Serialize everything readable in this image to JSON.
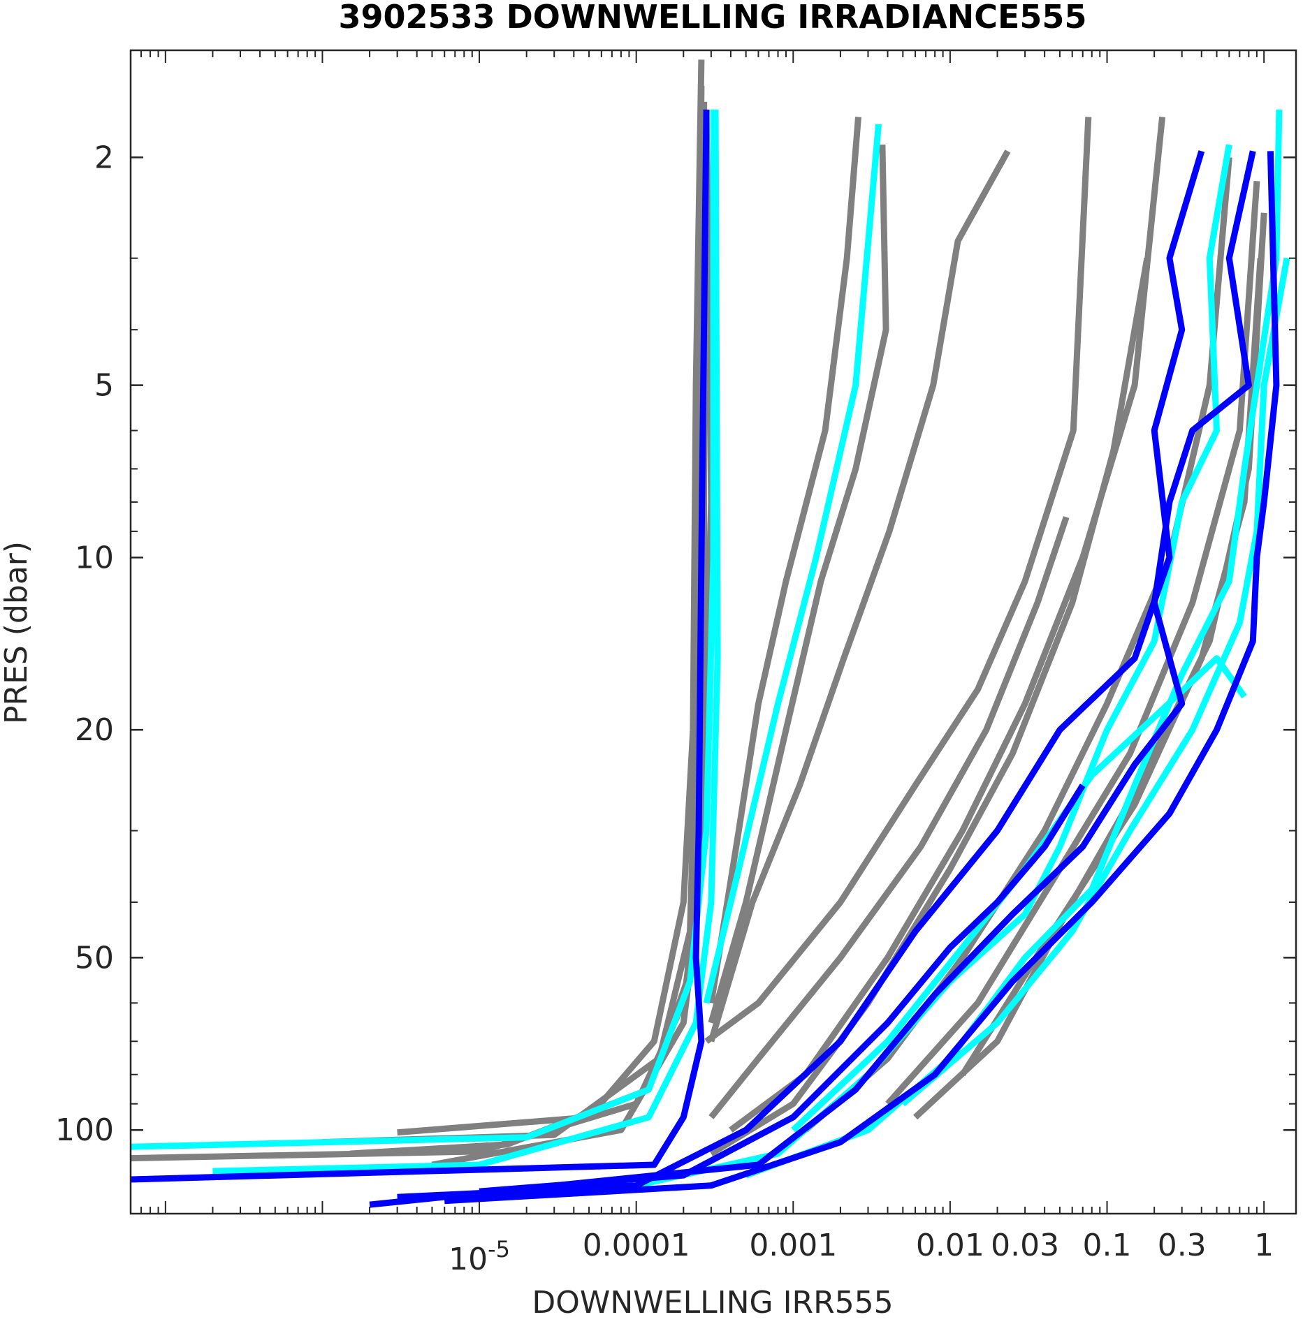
{
  "chart_data": {
    "type": "line",
    "title": "3902533  DOWNWELLING IRRADIANCE555",
    "xlabel": "DOWNWELLING IRR555",
    "ylabel": "PRES (dbar)",
    "xscale": "log",
    "yscale": "log",
    "yaxis_reversed": true,
    "xlim": [
      6e-08,
      1.6
    ],
    "ylim": [
      1.3,
      140
    ],
    "grid": false,
    "legend": "none",
    "x_ticks": [
      {
        "value": 1e-05,
        "label": "10",
        "sup": "-5"
      },
      {
        "value": 0.0001,
        "label": "0.0001",
        "sup": ""
      },
      {
        "value": 0.001,
        "label": "0.001",
        "sup": ""
      },
      {
        "value": 0.01,
        "label": "0.01",
        "sup": ""
      },
      {
        "value": 0.03,
        "label": "0.03",
        "sup": ""
      },
      {
        "value": 0.1,
        "label": "0.1",
        "sup": ""
      },
      {
        "value": 0.3,
        "label": "0.3",
        "sup": ""
      },
      {
        "value": 1,
        "label": "1",
        "sup": ""
      }
    ],
    "y_ticks": [
      {
        "value": 2,
        "label": "2"
      },
      {
        "value": 5,
        "label": "5"
      },
      {
        "value": 10,
        "label": "10"
      },
      {
        "value": 20,
        "label": "20"
      },
      {
        "value": 50,
        "label": "50"
      },
      {
        "value": 100,
        "label": "100"
      }
    ],
    "colors": {
      "gray": "#808080",
      "cyan": "#00ffff",
      "blue": "#0000ff",
      "red": "#ff0000",
      "axis": "#262626"
    },
    "series": [
      {
        "color": "gray",
        "points": [
          [
            0.00026,
            1.35
          ],
          [
            0.00024,
            5
          ],
          [
            0.00023,
            20
          ],
          [
            0.0002,
            40
          ],
          [
            0.00013,
            70
          ],
          [
            5e-05,
            95
          ],
          [
            3e-06,
            101
          ]
        ]
      },
      {
        "color": "gray",
        "points": [
          [
            0.00026,
            1.5
          ],
          [
            0.00025,
            5
          ],
          [
            0.00024,
            20
          ],
          [
            0.00022,
            45
          ],
          [
            0.00014,
            75
          ],
          [
            3e-05,
            102
          ],
          [
            1e-06,
            105
          ]
        ]
      },
      {
        "color": "gray",
        "points": [
          [
            0.00027,
            1.6
          ],
          [
            0.00027,
            10
          ],
          [
            0.00025,
            30
          ],
          [
            0.00021,
            55
          ],
          [
            0.00012,
            85
          ],
          [
            1.5e-05,
            106
          ],
          [
            1.5e-06,
            110
          ]
        ]
      },
      {
        "color": "gray",
        "points": [
          [
            0.00028,
            1.7
          ],
          [
            0.0003,
            8
          ],
          [
            0.00026,
            35
          ],
          [
            0.0002,
            60
          ],
          [
            0.0001,
            90
          ],
          [
            1e-05,
            109
          ],
          [
            6e-08,
            112
          ]
        ]
      },
      {
        "color": "gray",
        "points": [
          [
            0.00027,
            1.6
          ],
          [
            0.00026,
            15
          ],
          [
            0.00025,
            40
          ],
          [
            0.0002,
            65
          ],
          [
            8e-05,
            100
          ],
          [
            5e-06,
            115
          ]
        ]
      },
      {
        "color": "gray",
        "points": [
          [
            0.0026,
            1.7
          ],
          [
            0.0022,
            3
          ],
          [
            0.0016,
            6
          ],
          [
            0.0009,
            11
          ],
          [
            0.0006,
            18
          ],
          [
            0.00045,
            30
          ],
          [
            0.0003,
            60
          ]
        ]
      },
      {
        "color": "gray",
        "points": [
          [
            0.0037,
            1.9
          ],
          [
            0.0039,
            4
          ],
          [
            0.0025,
            7
          ],
          [
            0.0015,
            11
          ],
          [
            0.0009,
            20
          ],
          [
            0.0005,
            40
          ],
          [
            0.0003,
            65
          ]
        ]
      },
      {
        "color": "gray",
        "points": [
          [
            0.0233,
            1.95
          ],
          [
            0.0112,
            2.8
          ],
          [
            0.0078,
            5
          ],
          [
            0.0041,
            9
          ],
          [
            0.0021,
            15
          ],
          [
            0.0011,
            25
          ],
          [
            0.00055,
            40
          ],
          [
            0.0003,
            70
          ]
        ]
      },
      {
        "color": "gray",
        "points": [
          [
            0.076,
            1.7
          ],
          [
            0.061,
            6
          ],
          [
            0.03,
            11
          ],
          [
            0.015,
            17
          ],
          [
            0.006,
            25
          ],
          [
            0.002,
            40
          ],
          [
            0.0006,
            60
          ],
          [
            0.00028,
            70
          ]
        ]
      },
      {
        "color": "gray",
        "points": [
          [
            0.055,
            8.5
          ],
          [
            0.036,
            12
          ],
          [
            0.017,
            20
          ],
          [
            0.0065,
            32
          ],
          [
            0.002,
            50
          ],
          [
            0.0006,
            75
          ],
          [
            0.0003,
            95
          ]
        ]
      },
      {
        "color": "gray",
        "points": [
          [
            0.225,
            1.7
          ],
          [
            0.15,
            5
          ],
          [
            0.07,
            10
          ],
          [
            0.03,
            18
          ],
          [
            0.012,
            30
          ],
          [
            0.004,
            50
          ],
          [
            0.0012,
            80
          ],
          [
            0.0004,
            100
          ]
        ]
      },
      {
        "color": "gray",
        "points": [
          [
            0.18,
            3
          ],
          [
            0.11,
            6.5
          ],
          [
            0.06,
            12
          ],
          [
            0.025,
            22
          ],
          [
            0.01,
            35
          ],
          [
            0.003,
            60
          ],
          [
            0.001,
            90
          ],
          [
            0.0003,
            110
          ]
        ]
      },
      {
        "color": "gray",
        "points": [
          [
            0.6,
            2
          ],
          [
            0.45,
            5
          ],
          [
            0.25,
            10
          ],
          [
            0.1,
            18
          ],
          [
            0.04,
            30
          ],
          [
            0.012,
            50
          ],
          [
            0.004,
            75
          ],
          [
            0.0012,
            100
          ]
        ]
      },
      {
        "color": "gray",
        "points": [
          [
            0.9,
            2.2
          ],
          [
            0.7,
            6
          ],
          [
            0.35,
            12
          ],
          [
            0.14,
            22
          ],
          [
            0.05,
            35
          ],
          [
            0.015,
            60
          ],
          [
            0.004,
            90
          ]
        ]
      },
      {
        "color": "gray",
        "points": [
          [
            1.0,
            2.5
          ],
          [
            0.8,
            7
          ],
          [
            0.45,
            14
          ],
          [
            0.16,
            25
          ],
          [
            0.06,
            40
          ],
          [
            0.02,
            70
          ],
          [
            0.006,
            95
          ]
        ]
      },
      {
        "color": "gray",
        "points": [
          [
            0.95,
            3
          ],
          [
            0.75,
            8
          ],
          [
            0.4,
            15
          ],
          [
            0.15,
            27
          ],
          [
            0.045,
            45
          ],
          [
            0.012,
            80
          ]
        ]
      },
      {
        "color": "cyan",
        "points": [
          [
            0.00031,
            1.65
          ],
          [
            0.00031,
            10
          ],
          [
            0.00028,
            30
          ],
          [
            0.00022,
            55
          ],
          [
            0.00012,
            85
          ],
          [
            2e-05,
            103
          ],
          [
            6e-08,
            107
          ]
        ]
      },
      {
        "color": "cyan",
        "points": [
          [
            0.00032,
            1.65
          ],
          [
            0.00033,
            15
          ],
          [
            0.0003,
            40
          ],
          [
            0.00024,
            65
          ],
          [
            0.00012,
            95
          ],
          [
            1e-05,
            115
          ],
          [
            2e-07,
            118
          ]
        ]
      },
      {
        "color": "cyan",
        "points": [
          [
            0.0035,
            1.75
          ],
          [
            0.0025,
            5
          ],
          [
            0.0014,
            10
          ],
          [
            0.0008,
            18
          ],
          [
            0.00045,
            35
          ],
          [
            0.00028,
            60
          ]
        ]
      },
      {
        "color": "cyan",
        "points": [
          [
            0.6,
            1.9
          ],
          [
            0.45,
            3
          ],
          [
            0.5,
            6
          ],
          [
            0.3,
            8
          ],
          [
            0.2,
            14
          ],
          [
            0.1,
            20
          ],
          [
            0.05,
            32
          ],
          [
            0.03,
            42
          ],
          [
            0.01,
            55
          ],
          [
            0.003,
            80
          ],
          [
            0.0008,
            110
          ],
          [
            0.0001,
            125
          ]
        ]
      },
      {
        "color": "cyan",
        "points": [
          [
            1.25,
            1.65
          ],
          [
            1.2,
            3
          ],
          [
            0.9,
            5
          ],
          [
            0.75,
            7
          ],
          [
            0.6,
            11
          ],
          [
            0.3,
            16
          ],
          [
            0.15,
            25
          ],
          [
            0.08,
            38
          ],
          [
            0.03,
            50
          ],
          [
            0.01,
            75
          ],
          [
            0.003,
            100
          ],
          [
            0.0005,
            120
          ]
        ]
      },
      {
        "color": "cyan",
        "points": [
          [
            1.4,
            3
          ],
          [
            1.0,
            5
          ],
          [
            0.9,
            9
          ],
          [
            0.7,
            13
          ],
          [
            0.35,
            20
          ],
          [
            0.14,
            30
          ],
          [
            0.06,
            45
          ],
          [
            0.02,
            65
          ],
          [
            0.005,
            90
          ]
        ]
      },
      {
        "color": "cyan",
        "points": [
          [
            0.75,
            17.5
          ],
          [
            0.5,
            15
          ],
          [
            0.2,
            19
          ],
          [
            0.08,
            24
          ],
          [
            0.03,
            35
          ],
          [
            0.012,
            48
          ],
          [
            0.004,
            70
          ],
          [
            0.001,
            100
          ]
        ]
      },
      {
        "color": "blue",
        "points": [
          [
            0.00028,
            1.65
          ],
          [
            0.00026,
            10
          ],
          [
            0.00025,
            30
          ],
          [
            0.00024,
            50
          ],
          [
            0.00026,
            70
          ],
          [
            0.0002,
            95
          ],
          [
            0.00013,
            115
          ],
          [
            6e-08,
            122
          ]
        ]
      },
      {
        "color": "blue",
        "points": [
          [
            0.4,
            1.95
          ],
          [
            0.25,
            3
          ],
          [
            0.3,
            4
          ],
          [
            0.2,
            6
          ],
          [
            0.25,
            10
          ],
          [
            0.15,
            15
          ],
          [
            0.05,
            20
          ],
          [
            0.02,
            30
          ],
          [
            0.006,
            45
          ],
          [
            0.002,
            70
          ],
          [
            0.0005,
            100
          ],
          [
            0.0001,
            125
          ],
          [
            3e-06,
            131
          ]
        ]
      },
      {
        "color": "blue",
        "points": [
          [
            0.85,
            1.95
          ],
          [
            0.6,
            3
          ],
          [
            0.8,
            5
          ],
          [
            0.35,
            6
          ],
          [
            0.25,
            8
          ],
          [
            0.2,
            12
          ],
          [
            0.3,
            18
          ],
          [
            0.15,
            23
          ],
          [
            0.07,
            32
          ],
          [
            0.025,
            42
          ],
          [
            0.008,
            58
          ],
          [
            0.0025,
            85
          ],
          [
            0.0006,
            115
          ],
          [
            2e-06,
            135
          ]
        ]
      },
      {
        "color": "blue",
        "points": [
          [
            1.1,
            1.95
          ],
          [
            1.2,
            5
          ],
          [
            1.0,
            8
          ],
          [
            0.9,
            10
          ],
          [
            0.85,
            14
          ],
          [
            0.5,
            20
          ],
          [
            0.25,
            28
          ],
          [
            0.08,
            40
          ],
          [
            0.025,
            55
          ],
          [
            0.008,
            80
          ],
          [
            0.002,
            105
          ],
          [
            0.0003,
            125
          ],
          [
            6e-06,
            133
          ]
        ]
      },
      {
        "color": "blue",
        "points": [
          [
            0.07,
            25
          ],
          [
            0.04,
            32
          ],
          [
            0.02,
            40
          ],
          [
            0.01,
            48
          ],
          [
            0.004,
            65
          ],
          [
            0.001,
            95
          ],
          [
            0.0002,
            120
          ],
          [
            1e-05,
            128
          ]
        ]
      }
    ]
  }
}
